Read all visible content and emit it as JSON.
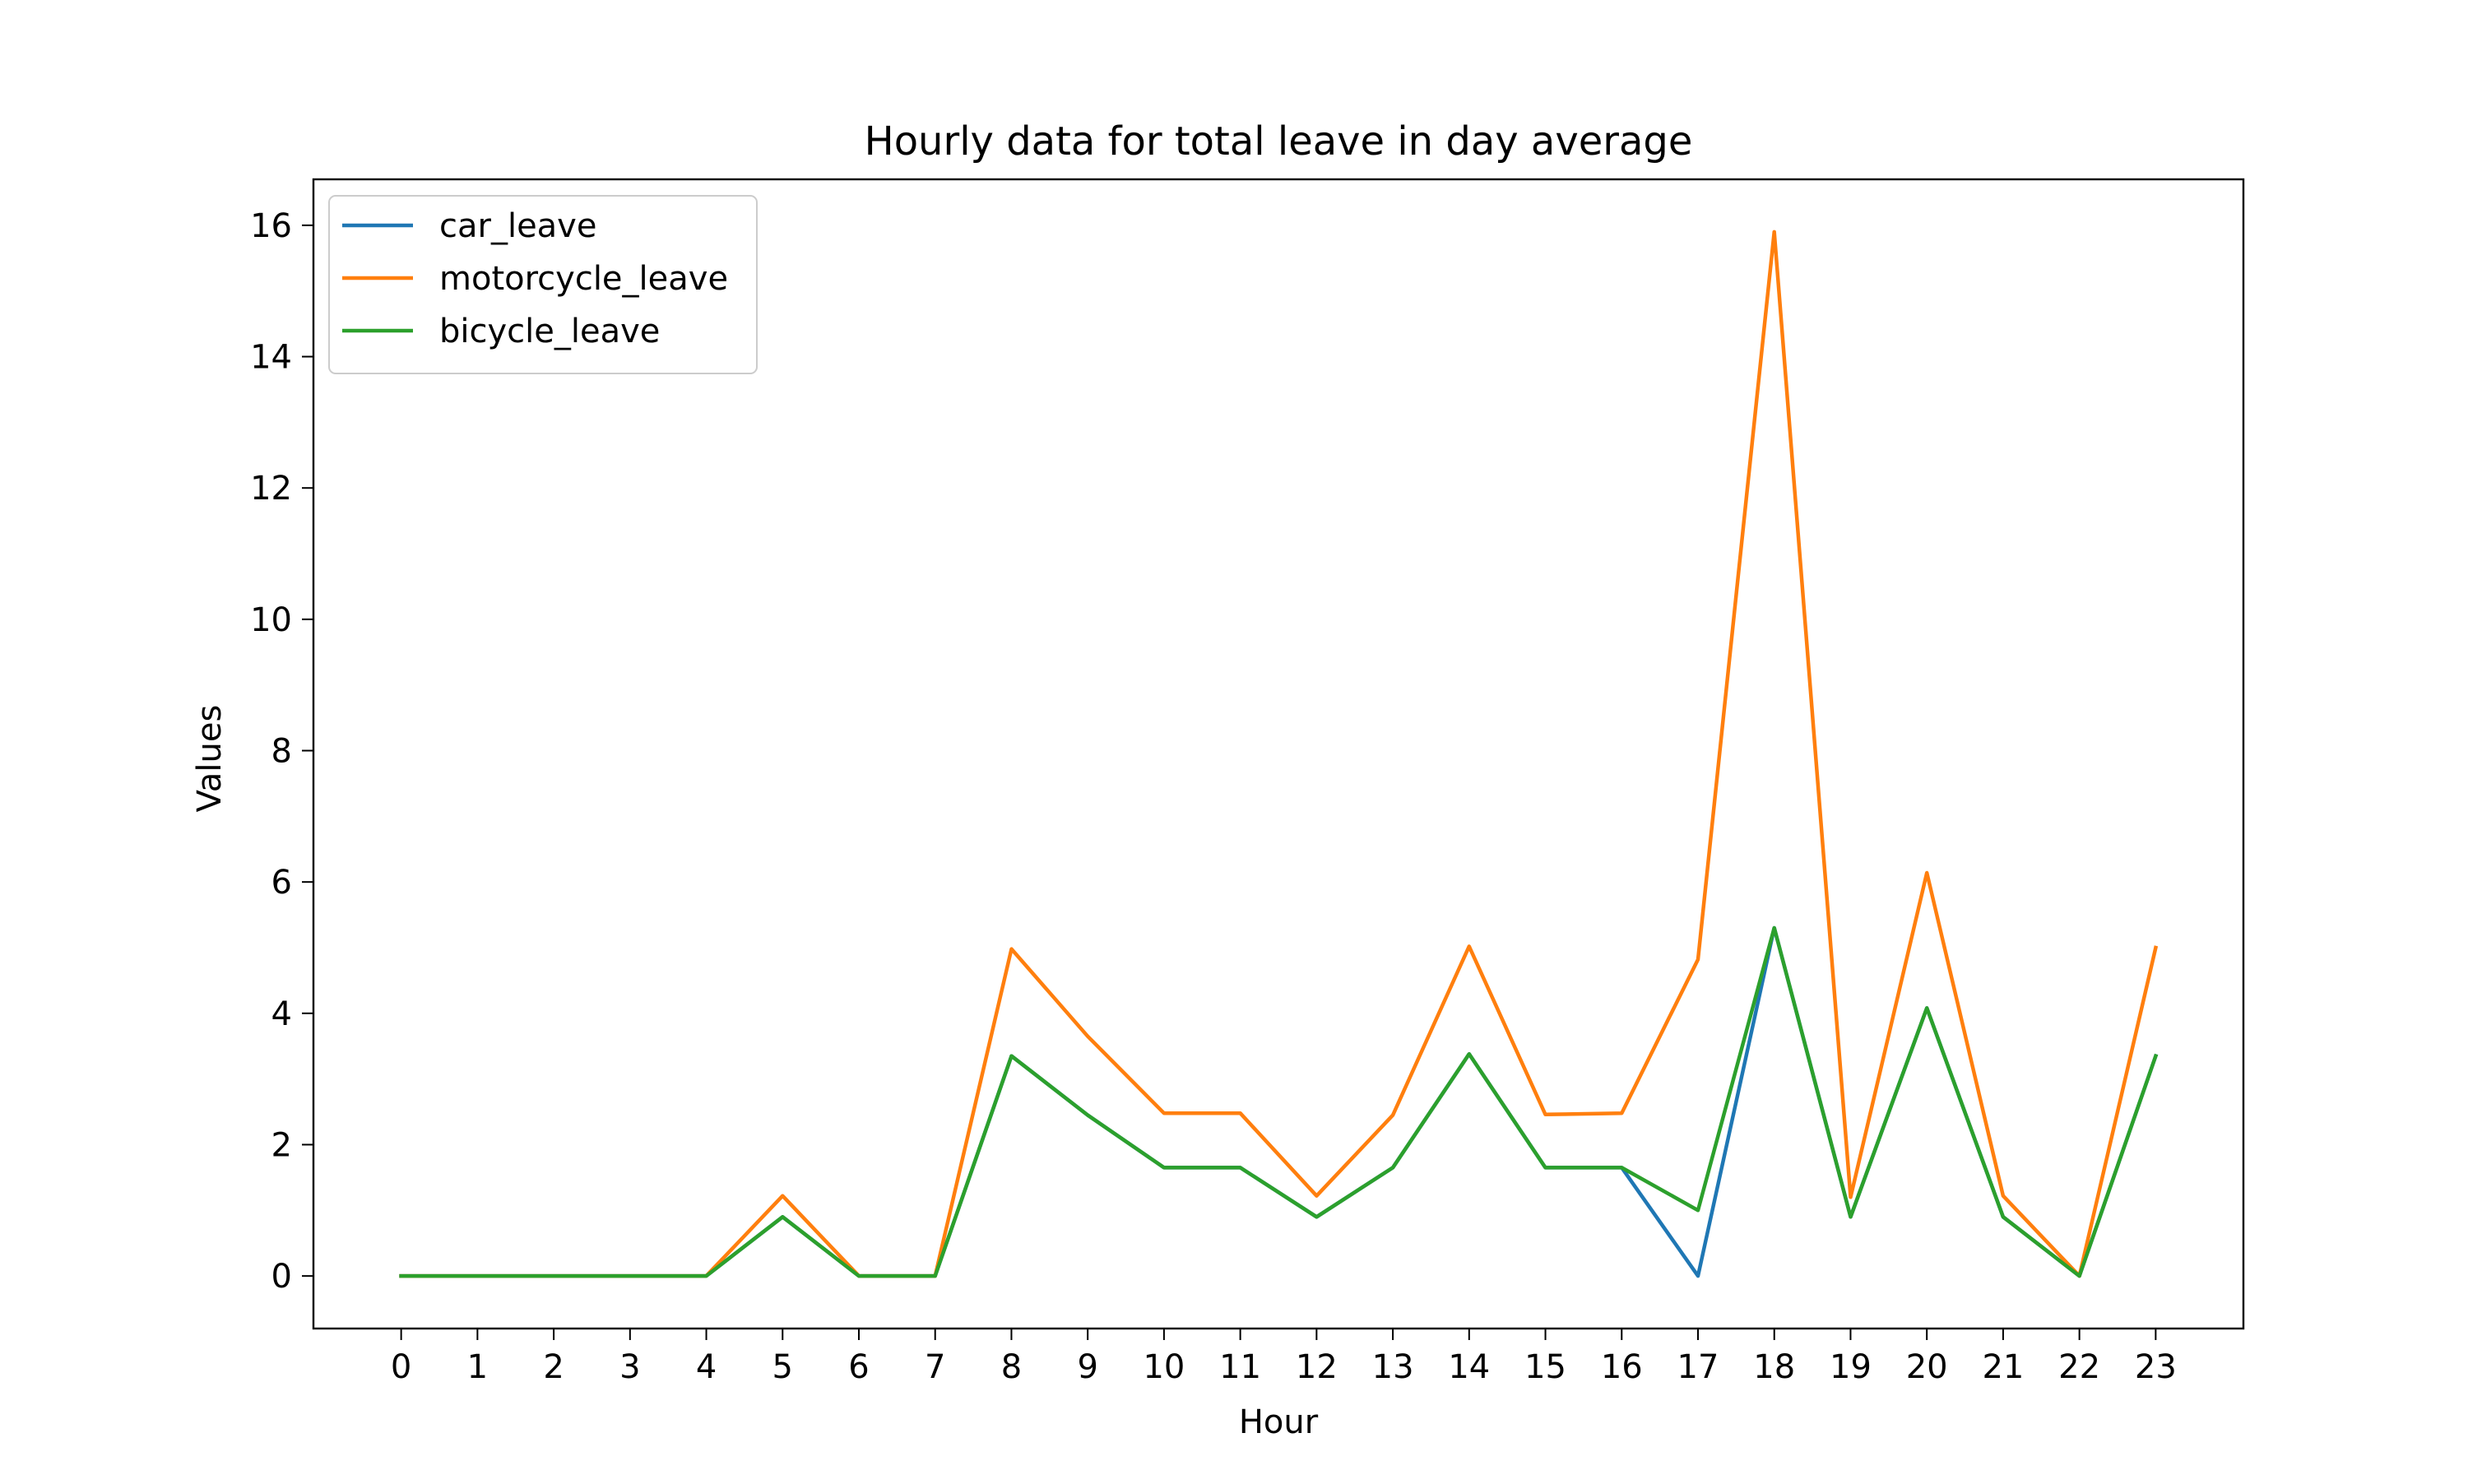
{
  "chart_data": {
    "type": "line",
    "title": "Hourly data for total leave in day average",
    "xlabel": "Hour",
    "ylabel": "Values",
    "x": [
      0,
      1,
      2,
      3,
      4,
      5,
      6,
      7,
      8,
      9,
      10,
      11,
      12,
      13,
      14,
      15,
      16,
      17,
      18,
      19,
      20,
      21,
      22,
      23
    ],
    "xticks": [
      "0",
      "1",
      "2",
      "3",
      "4",
      "5",
      "6",
      "7",
      "8",
      "9",
      "10",
      "11",
      "12",
      "13",
      "14",
      "15",
      "16",
      "17",
      "18",
      "19",
      "20",
      "21",
      "22",
      "23"
    ],
    "yticks": [
      0,
      2,
      4,
      6,
      8,
      10,
      12,
      14,
      16
    ],
    "ylim": [
      -0.8,
      16.7
    ],
    "xlim": [
      -1.15,
      24.15
    ],
    "grid": false,
    "legend_position": "top-left",
    "series": [
      {
        "name": "car_leave",
        "color": "#1f77b4",
        "values": [
          0,
          0,
          0,
          0,
          0,
          0.9,
          0,
          0,
          3.35,
          2.45,
          1.65,
          1.65,
          0.9,
          1.65,
          3.38,
          1.65,
          1.65,
          0,
          5.3,
          0.9,
          4.08,
          0.9,
          0,
          3.35
        ]
      },
      {
        "name": "motorcycle_leave",
        "color": "#ff7f0e",
        "values": [
          0,
          0,
          0,
          0,
          0,
          1.22,
          0,
          0,
          4.98,
          3.65,
          2.48,
          2.48,
          1.22,
          2.45,
          5.02,
          2.46,
          2.48,
          4.82,
          15.9,
          1.2,
          6.14,
          1.22,
          0,
          5.0
        ]
      },
      {
        "name": "bicycle_leave",
        "color": "#2ca02c",
        "values": [
          0,
          0,
          0,
          0,
          0,
          0.9,
          0,
          0,
          3.35,
          2.45,
          1.65,
          1.65,
          0.9,
          1.65,
          3.38,
          1.65,
          1.65,
          1.0,
          5.3,
          0.9,
          4.08,
          0.9,
          0,
          3.35
        ]
      }
    ]
  }
}
